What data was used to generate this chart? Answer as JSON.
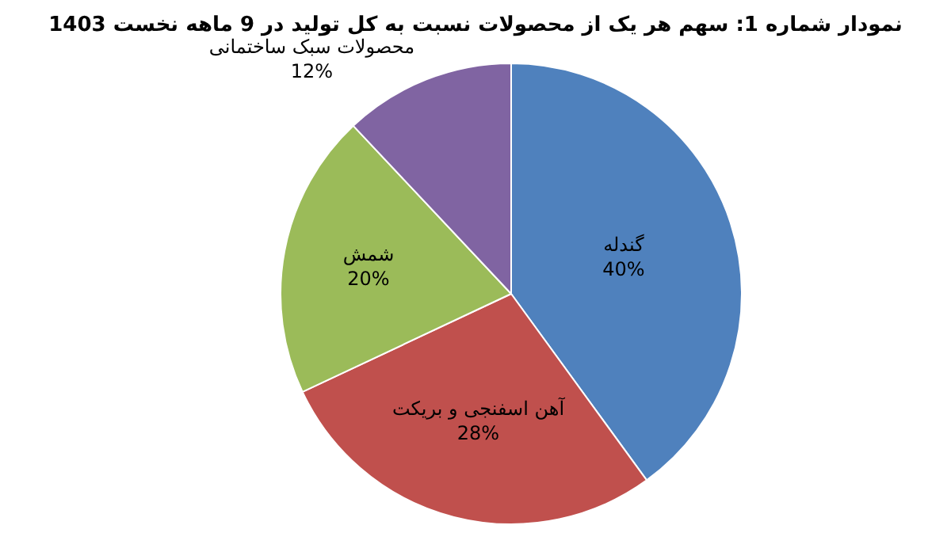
{
  "chart_data": {
    "type": "pie",
    "title": "نمودار شماره 1: سهم هر یک از محصولات نسبت به کل تولید در 9 ماهه نخست 1403",
    "categories": [
      "گندله",
      "آهن اسفنجی و بریکت",
      "شمش",
      "محصولات سبک ساختمانی"
    ],
    "values": [
      40,
      28,
      20,
      12
    ],
    "value_labels": [
      "40%",
      "28%",
      "20%",
      "12%"
    ],
    "colors": [
      "#4f81bd",
      "#c0504d",
      "#9bbb59",
      "#8064a2"
    ],
    "legend": false
  }
}
